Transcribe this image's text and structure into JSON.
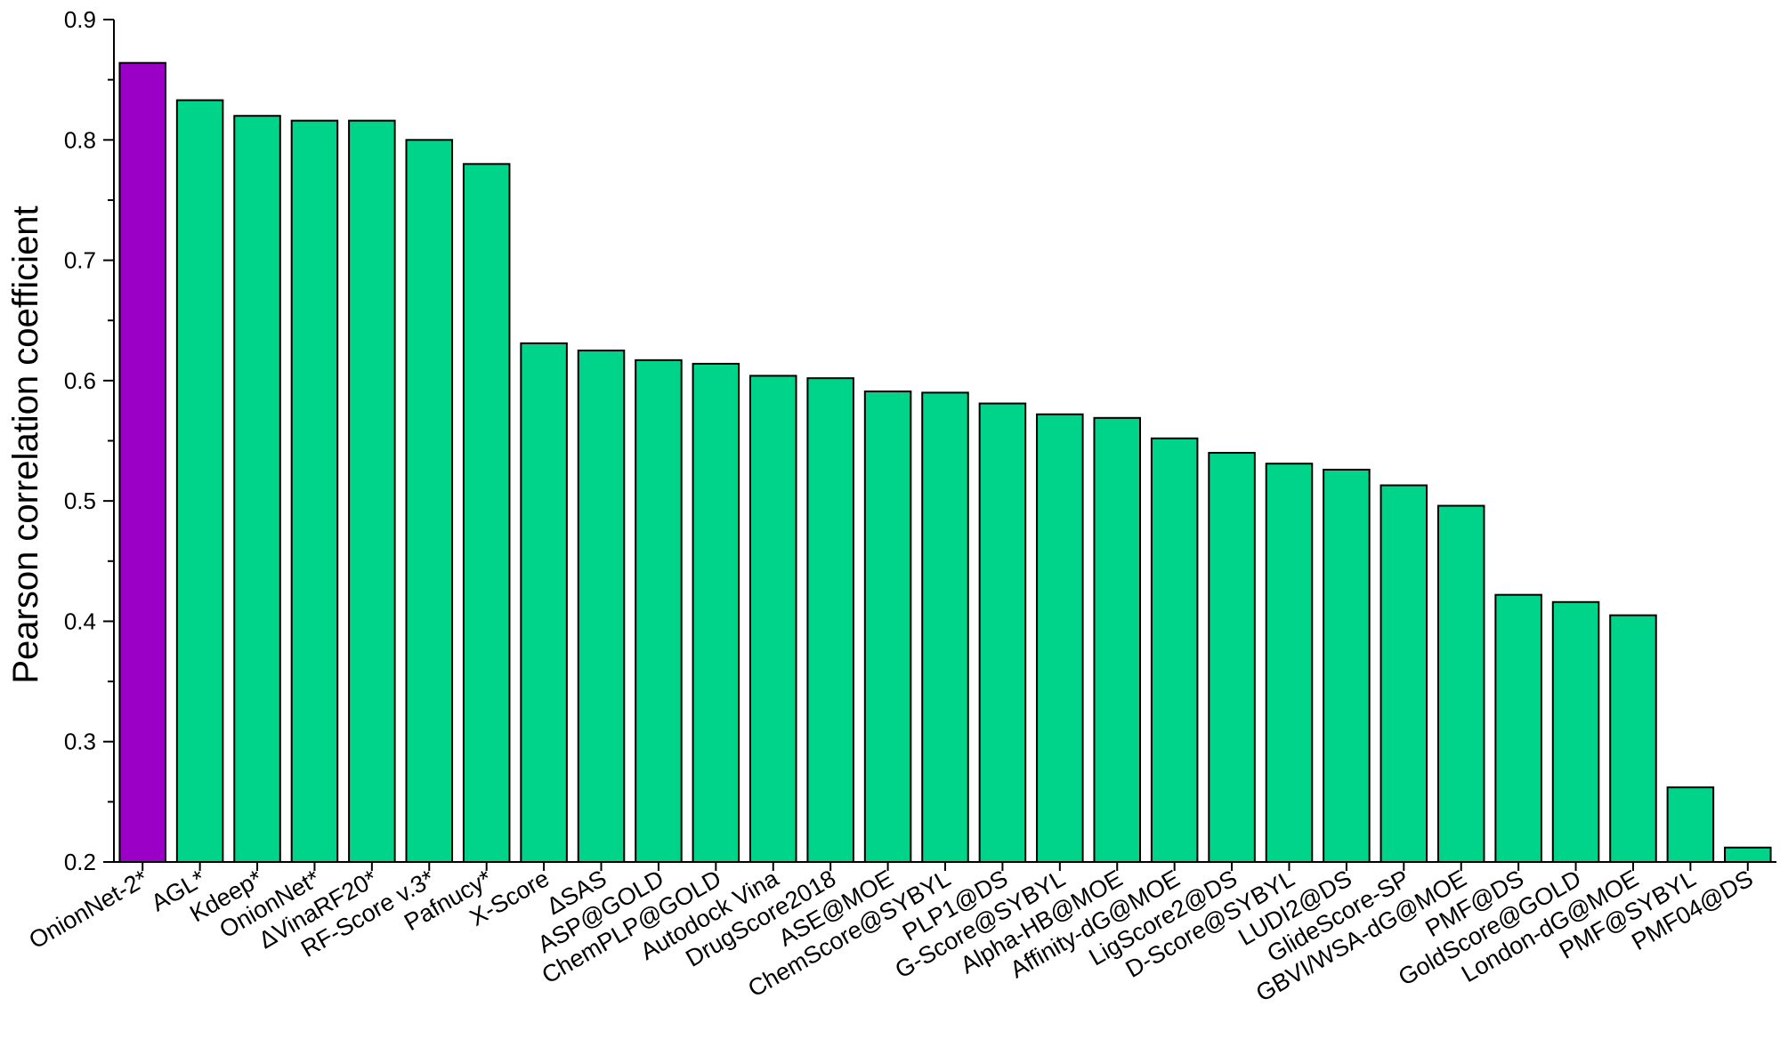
{
  "chart_data": {
    "type": "bar",
    "ylabel": "Pearson correlation coefficient",
    "xlabel": "",
    "ylim": [
      0.2,
      0.9
    ],
    "yticks": [
      0.2,
      0.3,
      0.4,
      0.5,
      0.6,
      0.7,
      0.8,
      0.9
    ],
    "categories": [
      "OnionNet-2*",
      "AGL*",
      "Kdeep*",
      "OnionNet*",
      "ΔVinaRF20*",
      "RF-Score v.3*",
      "Pafnucy*",
      "X-Score",
      "ΔSAS",
      "ASP@GOLD",
      "ChemPLP@GOLD",
      "Autodock Vina",
      "DrugScore2018",
      "ASE@MOE",
      "ChemScore@SYBYL",
      "PLP1@DS",
      "G-Score@SYBYL",
      "Alpha-HB@MOE",
      "Affinity-dG@MOE",
      "LigScore2@DS",
      "D-Score@SYBYL",
      "LUDI2@DS",
      "GlideScore-SP",
      "GBVI/WSA-dG@MOE",
      "PMF@DS",
      "GoldScore@GOLD",
      "London-dG@MOE",
      "PMF@SYBYL",
      "PMF04@DS"
    ],
    "values": [
      0.864,
      0.833,
      0.82,
      0.816,
      0.816,
      0.8,
      0.78,
      0.631,
      0.625,
      0.617,
      0.614,
      0.604,
      0.602,
      0.591,
      0.59,
      0.581,
      0.572,
      0.569,
      0.552,
      0.54,
      0.531,
      0.526,
      0.513,
      0.496,
      0.422,
      0.416,
      0.405,
      0.262,
      0.212
    ],
    "colors": {
      "highlight": "#9b00c7",
      "default": "#00d38a"
    },
    "highlight_index": 0,
    "grid": false,
    "legend": "none"
  }
}
